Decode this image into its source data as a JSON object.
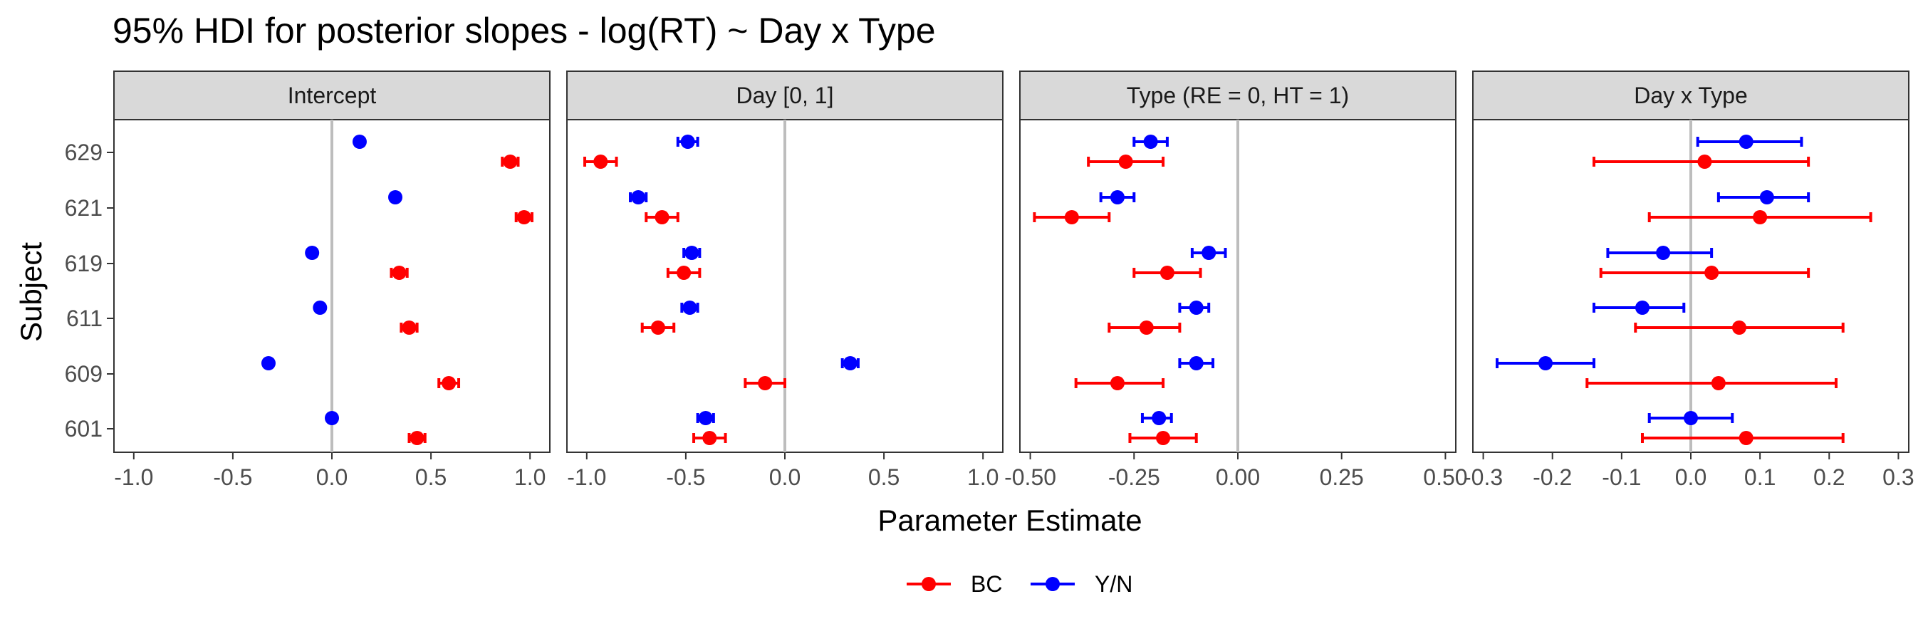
{
  "chart_data": {
    "type": "scatter",
    "title": "95% HDI for posterior slopes - log(RT) ~ Day x Type",
    "xlabel": "Parameter Estimate",
    "ylabel": "Subject",
    "subjects": [
      "601",
      "609",
      "611",
      "619",
      "621",
      "629"
    ],
    "legend": {
      "placement": "bottom",
      "entries": [
        {
          "label": "BC",
          "color": "#ff0000"
        },
        {
          "label": "Y/N",
          "color": "#0000ff"
        }
      ]
    },
    "panels": [
      {
        "name": "Intercept",
        "xlim": [
          -1.1,
          1.1
        ],
        "ticks": [
          -1.0,
          -0.5,
          0.0,
          0.5,
          1.0
        ],
        "tick_labels": [
          "-1.0",
          "-0.5",
          "0.0",
          "0.5",
          "1.0"
        ],
        "series": [
          {
            "name": "BC",
            "color": "#ff0000",
            "points": [
              {
                "subject": "601",
                "est": 0.43,
                "lo": 0.39,
                "hi": 0.47
              },
              {
                "subject": "609",
                "est": 0.59,
                "lo": 0.54,
                "hi": 0.64
              },
              {
                "subject": "611",
                "est": 0.39,
                "lo": 0.35,
                "hi": 0.43
              },
              {
                "subject": "619",
                "est": 0.34,
                "lo": 0.3,
                "hi": 0.38
              },
              {
                "subject": "621",
                "est": 0.97,
                "lo": 0.93,
                "hi": 1.01
              },
              {
                "subject": "629",
                "est": 0.9,
                "lo": 0.86,
                "hi": 0.94
              }
            ]
          },
          {
            "name": "Y/N",
            "color": "#0000ff",
            "points": [
              {
                "subject": "601",
                "est": 0.0,
                "lo": -0.01,
                "hi": 0.01
              },
              {
                "subject": "609",
                "est": -0.32,
                "lo": -0.34,
                "hi": -0.3
              },
              {
                "subject": "611",
                "est": -0.06,
                "lo": -0.07,
                "hi": -0.05
              },
              {
                "subject": "619",
                "est": -0.1,
                "lo": -0.12,
                "hi": -0.08
              },
              {
                "subject": "621",
                "est": 0.32,
                "lo": 0.3,
                "hi": 0.34
              },
              {
                "subject": "629",
                "est": 0.14,
                "lo": 0.12,
                "hi": 0.16
              }
            ]
          }
        ]
      },
      {
        "name": "Day [0, 1]",
        "xlim": [
          -1.1,
          1.1
        ],
        "ticks": [
          -1.0,
          -0.5,
          0.0,
          0.5,
          1.0
        ],
        "tick_labels": [
          "-1.0",
          "-0.5",
          "0.0",
          "0.5",
          "1.0"
        ],
        "series": [
          {
            "name": "BC",
            "color": "#ff0000",
            "points": [
              {
                "subject": "601",
                "est": -0.38,
                "lo": -0.46,
                "hi": -0.3
              },
              {
                "subject": "609",
                "est": -0.1,
                "lo": -0.2,
                "hi": 0.0
              },
              {
                "subject": "611",
                "est": -0.64,
                "lo": -0.72,
                "hi": -0.56
              },
              {
                "subject": "619",
                "est": -0.51,
                "lo": -0.59,
                "hi": -0.43
              },
              {
                "subject": "621",
                "est": -0.62,
                "lo": -0.7,
                "hi": -0.54
              },
              {
                "subject": "629",
                "est": -0.93,
                "lo": -1.01,
                "hi": -0.85
              }
            ]
          },
          {
            "name": "Y/N",
            "color": "#0000ff",
            "points": [
              {
                "subject": "601",
                "est": -0.4,
                "lo": -0.44,
                "hi": -0.36
              },
              {
                "subject": "609",
                "est": 0.33,
                "lo": 0.29,
                "hi": 0.37
              },
              {
                "subject": "611",
                "est": -0.48,
                "lo": -0.52,
                "hi": -0.44
              },
              {
                "subject": "619",
                "est": -0.47,
                "lo": -0.51,
                "hi": -0.43
              },
              {
                "subject": "621",
                "est": -0.74,
                "lo": -0.78,
                "hi": -0.7
              },
              {
                "subject": "629",
                "est": -0.49,
                "lo": -0.54,
                "hi": -0.44
              }
            ]
          }
        ]
      },
      {
        "name": "Type (RE = 0, HT = 1)",
        "xlim": [
          -0.525,
          0.525
        ],
        "ticks": [
          -0.5,
          -0.25,
          0.0,
          0.25,
          0.5
        ],
        "tick_labels": [
          "-0.50",
          "-0.25",
          "0.00",
          "0.25",
          "0.50"
        ],
        "series": [
          {
            "name": "BC",
            "color": "#ff0000",
            "points": [
              {
                "subject": "601",
                "est": -0.18,
                "lo": -0.26,
                "hi": -0.1
              },
              {
                "subject": "609",
                "est": -0.29,
                "lo": -0.39,
                "hi": -0.18
              },
              {
                "subject": "611",
                "est": -0.22,
                "lo": -0.31,
                "hi": -0.14
              },
              {
                "subject": "619",
                "est": -0.17,
                "lo": -0.25,
                "hi": -0.09
              },
              {
                "subject": "621",
                "est": -0.4,
                "lo": -0.49,
                "hi": -0.31
              },
              {
                "subject": "629",
                "est": -0.27,
                "lo": -0.36,
                "hi": -0.18
              }
            ]
          },
          {
            "name": "Y/N",
            "color": "#0000ff",
            "points": [
              {
                "subject": "601",
                "est": -0.19,
                "lo": -0.23,
                "hi": -0.16
              },
              {
                "subject": "609",
                "est": -0.1,
                "lo": -0.14,
                "hi": -0.06
              },
              {
                "subject": "611",
                "est": -0.1,
                "lo": -0.14,
                "hi": -0.07
              },
              {
                "subject": "619",
                "est": -0.07,
                "lo": -0.11,
                "hi": -0.03
              },
              {
                "subject": "621",
                "est": -0.29,
                "lo": -0.33,
                "hi": -0.25
              },
              {
                "subject": "629",
                "est": -0.21,
                "lo": -0.25,
                "hi": -0.17
              }
            ]
          }
        ]
      },
      {
        "name": "Day x Type",
        "xlim": [
          -0.315,
          0.315
        ],
        "ticks": [
          -0.3,
          -0.2,
          -0.1,
          0.0,
          0.1,
          0.2,
          0.3
        ],
        "tick_labels": [
          "-0.3",
          "-0.2",
          "-0.1",
          "0.0",
          "0.1",
          "0.2",
          "0.3"
        ],
        "series": [
          {
            "name": "BC",
            "color": "#ff0000",
            "points": [
              {
                "subject": "601",
                "est": 0.08,
                "lo": -0.07,
                "hi": 0.22
              },
              {
                "subject": "609",
                "est": 0.04,
                "lo": -0.15,
                "hi": 0.21
              },
              {
                "subject": "611",
                "est": 0.07,
                "lo": -0.08,
                "hi": 0.22
              },
              {
                "subject": "619",
                "est": 0.03,
                "lo": -0.13,
                "hi": 0.17
              },
              {
                "subject": "621",
                "est": 0.1,
                "lo": -0.06,
                "hi": 0.26
              },
              {
                "subject": "629",
                "est": 0.02,
                "lo": -0.14,
                "hi": 0.17
              }
            ]
          },
          {
            "name": "Y/N",
            "color": "#0000ff",
            "points": [
              {
                "subject": "601",
                "est": 0.0,
                "lo": -0.06,
                "hi": 0.06
              },
              {
                "subject": "609",
                "est": -0.21,
                "lo": -0.28,
                "hi": -0.14
              },
              {
                "subject": "611",
                "est": -0.07,
                "lo": -0.14,
                "hi": -0.01
              },
              {
                "subject": "619",
                "est": -0.04,
                "lo": -0.12,
                "hi": 0.03
              },
              {
                "subject": "621",
                "est": 0.11,
                "lo": 0.04,
                "hi": 0.17
              },
              {
                "subject": "629",
                "est": 0.08,
                "lo": 0.01,
                "hi": 0.16
              }
            ]
          }
        ]
      }
    ]
  }
}
